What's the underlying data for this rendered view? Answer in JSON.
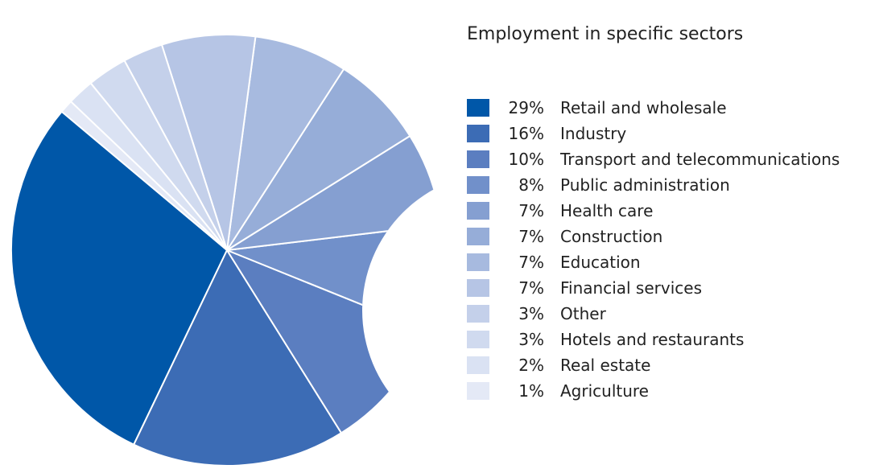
{
  "chart_data": {
    "type": "pie",
    "title": "Employment in specific sectors",
    "slices": [
      {
        "label": "Retail and wholesale",
        "value": 29,
        "value_label": "29%",
        "color": "#0057a8"
      },
      {
        "label": "Industry",
        "value": 16,
        "value_label": "16%",
        "color": "#3c6cb5"
      },
      {
        "label": "Transport and telecommunications",
        "value": 10,
        "value_label": "10%",
        "color": "#5b7ec0"
      },
      {
        "label": "Public administration",
        "value": 8,
        "value_label": "8%",
        "color": "#7190ca"
      },
      {
        "label": "Health care",
        "value": 7,
        "value_label": "7%",
        "color": "#859fd1"
      },
      {
        "label": "Construction",
        "value": 7,
        "value_label": "7%",
        "color": "#96add8"
      },
      {
        "label": "Education",
        "value": 7,
        "value_label": "7%",
        "color": "#a7badf"
      },
      {
        "label": "Financial services",
        "value": 7,
        "value_label": "7%",
        "color": "#b6c5e5"
      },
      {
        "label": "Other",
        "value": 3,
        "value_label": "3%",
        "color": "#c4d0ea"
      },
      {
        "label": "Hotels and restaurants",
        "value": 3,
        "value_label": "3%",
        "color": "#d0daef"
      },
      {
        "label": "Real estate",
        "value": 2,
        "value_label": "2%",
        "color": "#dae2f3"
      },
      {
        "label": "Agriculture",
        "value": 1,
        "value_label": "1%",
        "color": "#e4e9f6"
      }
    ],
    "legend_position": "right"
  }
}
